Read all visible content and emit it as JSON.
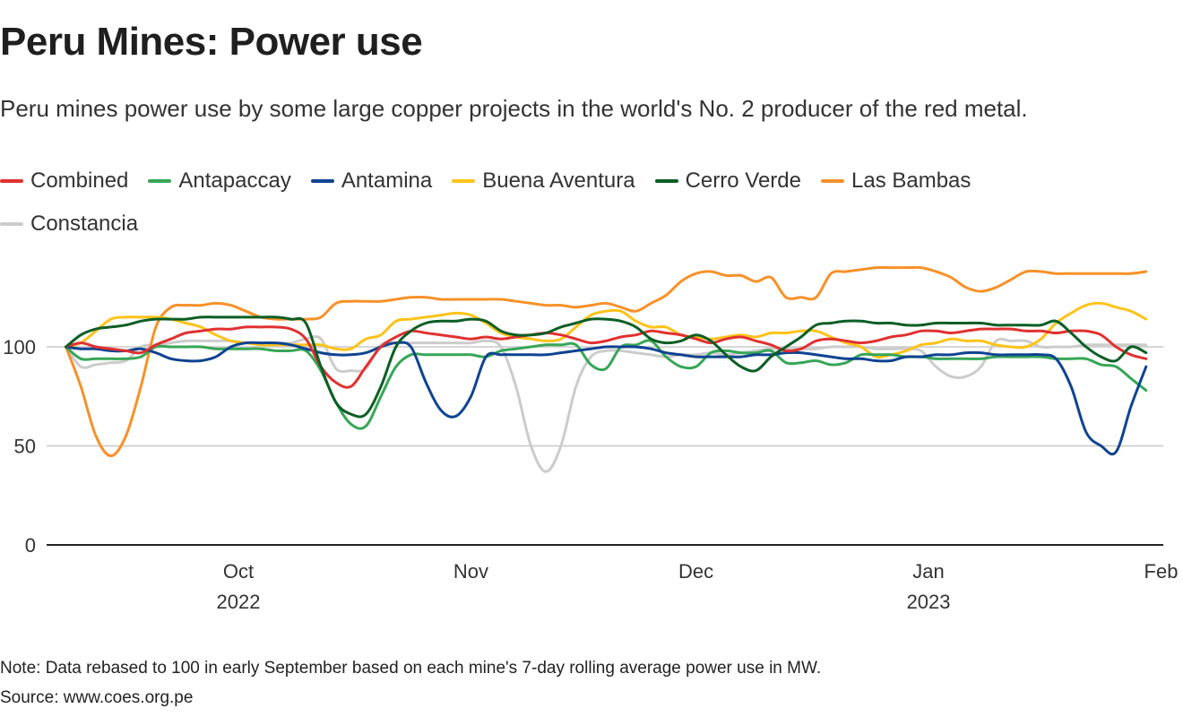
{
  "title": "Peru Mines: Power use",
  "subtitle": "Peru mines power use by some large copper projects in the world's No. 2 producer of the red metal.",
  "note": "Note: Data rebased to 100 in early September based on each mine's 7-day rolling average power use in MW.",
  "source": "Source: www.coes.org.pe",
  "legend": [
    {
      "name": "Combined",
      "color": "#e03131"
    },
    {
      "name": "Antapaccay",
      "color": "#37a657"
    },
    {
      "name": "Antamina",
      "color": "#0f4391"
    },
    {
      "name": "Buena Aventura",
      "color": "#fdc319"
    },
    {
      "name": "Cerro Verde",
      "color": "#0b5e25"
    },
    {
      "name": "Las Bambas",
      "color": "#f7912a"
    },
    {
      "name": "Constancia",
      "color": "#cccccc"
    }
  ],
  "chart_data": {
    "type": "line",
    "title": "Peru Mines: Power use",
    "xlabel": "",
    "ylabel": "",
    "ylim": [
      0,
      140
    ],
    "yticks": [
      0,
      50,
      100
    ],
    "x_unit": "days since Sep 8, 2022",
    "xlim": [
      0,
      148
    ],
    "xticks": [
      {
        "day": 23,
        "label": "Oct",
        "sublabel": "2022"
      },
      {
        "day": 54,
        "label": "Nov",
        "sublabel": ""
      },
      {
        "day": 84,
        "label": "Dec",
        "sublabel": ""
      },
      {
        "day": 115,
        "label": "Jan",
        "sublabel": "2023"
      },
      {
        "day": 146,
        "label": "Feb",
        "sublabel": ""
      }
    ],
    "grid": true,
    "legend_position": "top-left",
    "x": [
      0,
      2,
      4,
      6,
      8,
      10,
      12,
      14,
      16,
      18,
      20,
      22,
      24,
      26,
      28,
      30,
      32,
      34,
      36,
      38,
      40,
      42,
      44,
      46,
      48,
      50,
      52,
      54,
      56,
      58,
      60,
      62,
      64,
      66,
      68,
      70,
      72,
      74,
      76,
      78,
      80,
      82,
      84,
      86,
      88,
      90,
      92,
      94,
      96,
      98,
      100,
      102,
      104,
      106,
      108,
      110,
      112,
      114,
      116,
      118,
      120,
      122,
      124,
      126,
      128,
      130,
      132,
      134,
      136,
      138,
      140,
      142,
      144
    ],
    "series": [
      {
        "name": "Combined",
        "color": "#e03131",
        "values": [
          100,
          102,
          100,
          99,
          98,
          97,
          101,
          104,
          107,
          108,
          109,
          109,
          110,
          110,
          110,
          109,
          104,
          90,
          82,
          80,
          90,
          100,
          105,
          108,
          107,
          106,
          105,
          104,
          105,
          104,
          105,
          106,
          107,
          106,
          104,
          102,
          103,
          105,
          106,
          108,
          107,
          106,
          104,
          102,
          104,
          105,
          103,
          101,
          98,
          99,
          103,
          104,
          103,
          102,
          103,
          105,
          106,
          108,
          108,
          107,
          108,
          109,
          109,
          109,
          108,
          108,
          107,
          108,
          108,
          106,
          100,
          96,
          94
        ]
      },
      {
        "name": "Antapaccay",
        "color": "#37a657",
        "values": [
          100,
          94,
          94,
          94,
          94,
          95,
          100,
          100,
          100,
          100,
          99,
          99,
          99,
          99,
          98,
          98,
          98,
          88,
          72,
          61,
          60,
          75,
          90,
          96,
          96,
          96,
          96,
          96,
          95,
          98,
          99,
          100,
          101,
          101,
          101,
          91,
          89,
          100,
          101,
          103,
          95,
          90,
          90,
          97,
          98,
          97,
          97,
          98,
          92,
          92,
          93,
          91,
          92,
          96,
          96,
          96,
          95,
          95,
          94,
          94,
          94,
          94,
          95,
          95,
          95,
          95,
          94,
          94,
          94,
          91,
          90,
          84,
          78
        ]
      },
      {
        "name": "Antamina",
        "color": "#0f4391",
        "values": [
          100,
          99,
          99,
          98,
          98,
          99,
          97,
          94,
          93,
          93,
          95,
          100,
          102,
          102,
          102,
          101,
          99,
          97,
          96,
          96,
          97,
          100,
          102,
          100,
          82,
          68,
          65,
          75,
          95,
          96,
          96,
          96,
          96,
          97,
          98,
          99,
          100,
          100,
          100,
          99,
          97,
          96,
          95,
          95,
          95,
          95,
          96,
          96,
          97,
          97,
          96,
          95,
          94,
          94,
          93,
          93,
          95,
          95,
          96,
          96,
          97,
          97,
          96,
          96,
          96,
          96,
          94,
          80,
          57,
          50,
          47,
          70,
          90
        ]
      },
      {
        "name": "Buena Aventura",
        "color": "#fdc319",
        "values": [
          100,
          102,
          108,
          114,
          115,
          115,
          115,
          114,
          112,
          110,
          106,
          103,
          102,
          101,
          101,
          101,
          101,
          101,
          99,
          99,
          104,
          106,
          113,
          114,
          115,
          116,
          117,
          116,
          112,
          107,
          105,
          104,
          103,
          104,
          110,
          116,
          118,
          118,
          113,
          110,
          110,
          106,
          105,
          104,
          105,
          106,
          105,
          107,
          107,
          108,
          108,
          105,
          102,
          100,
          95,
          96,
          98,
          101,
          102,
          104,
          103,
          103,
          101,
          100,
          100,
          104,
          112,
          117,
          121,
          122,
          120,
          118,
          114
        ]
      },
      {
        "name": "Cerro Verde",
        "color": "#0b5e25",
        "values": [
          100,
          106,
          109,
          110,
          111,
          113,
          114,
          114,
          114,
          115,
          115,
          115,
          115,
          115,
          115,
          114,
          112,
          90,
          72,
          66,
          66,
          80,
          100,
          108,
          112,
          113,
          113,
          114,
          113,
          108,
          106,
          106,
          107,
          110,
          112,
          114,
          114,
          113,
          110,
          104,
          102,
          103,
          106,
          103,
          96,
          90,
          88,
          95,
          100,
          105,
          111,
          112,
          113,
          113,
          112,
          112,
          111,
          111,
          112,
          112,
          112,
          112,
          111,
          111,
          111,
          111,
          113,
          107,
          100,
          95,
          93,
          100,
          97
        ]
      },
      {
        "name": "Las Bambas",
        "color": "#f7912a",
        "values": [
          100,
          80,
          55,
          45,
          55,
          80,
          110,
          120,
          121,
          121,
          122,
          121,
          118,
          115,
          114,
          114,
          114,
          115,
          122,
          123,
          123,
          123,
          124,
          125,
          125,
          124,
          124,
          124,
          124,
          124,
          123,
          122,
          121,
          121,
          120,
          121,
          122,
          120,
          118,
          122,
          126,
          133,
          137,
          138,
          136,
          136,
          133,
          135,
          125,
          125,
          125,
          137,
          138,
          139,
          140,
          140,
          140,
          140,
          138,
          135,
          130,
          128,
          130,
          134,
          138,
          138,
          137,
          137,
          137,
          137,
          137,
          137,
          138
        ]
      },
      {
        "name": "Constancia",
        "color": "#cccccc",
        "values": [
          100,
          90,
          91,
          92,
          93,
          100,
          101,
          102,
          103,
          103,
          103,
          103,
          102,
          102,
          102,
          102,
          104,
          104,
          89,
          88,
          89,
          101,
          102,
          102,
          102,
          102,
          102,
          102,
          103,
          100,
          80,
          50,
          37,
          50,
          80,
          95,
          98,
          98,
          97,
          96,
          95,
          96,
          96,
          97,
          96,
          97,
          98,
          99,
          99,
          99,
          99,
          100,
          100,
          100,
          99,
          99,
          99,
          98,
          90,
          85,
          85,
          90,
          103,
          103,
          103,
          100,
          100,
          100,
          101,
          101,
          101,
          101,
          101
        ]
      }
    ]
  }
}
